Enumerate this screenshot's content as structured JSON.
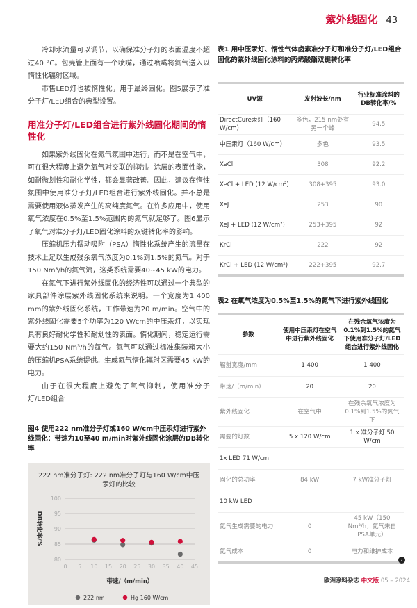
{
  "header": {
    "section": "紫外线固化",
    "page": "43"
  },
  "left": {
    "paragraphs_a": [
      "冷却水流量可以调节，以确保准分子灯的表面温度不超过40 °C。包壳管上面有一个喷嘴，通过喷嘴将氮气送入以惰性化辐射区域。",
      "市售LED灯也被惰性化，用于最终固化。图5展示了准分子灯/LED组合的典型设置。"
    ],
    "heading": "用准分子灯/LED组合进行紫外线固化期间的惰性化",
    "paragraphs_b": [
      "如果紫外线固化在氮气氛围中进行，而不是在空气中，可在很大程度上避免氧气对交联的抑制。涂层的表面性能，如耐微划性和耐化学性，都会显著改善。因此，建议在惰性氛围中使用准分子灯/LED组合进行紫外线固化。并不总是需要使用液体蒸发产生的高纯度氮气。在许多应用中，使用氧气浓度在0.5%至1.5%范围内的氮气就足够了。图6显示了氧气对准分子灯/LED固化涂料的双键转化率的影响。",
      "压缩机压力摆动吸附（PSA）惰性化系统产生的流量在技术上足以生成残余氧气浓度为0.1%到1.5%的氮气。对于150 Nm³/h的氮气流，这类系统需要40~45 kW的电力。",
      "在氮气下进行紫外线固化的经济性可以通过一个典型的家具部件涂层紫外线固化系统来说明。一个宽度为1 400 mm的紫外线固化系统，工作带速为20 m/min。空气中的紫外线固化需要5个功率为120 W/cm的中压汞灯，以实现具有良好耐化学性和耐划性的表面。惰化期间，稳定运行需要大约150 Nm³/h的氮气。氮气可以通过标准集装箱大小的压缩机PSA系统提供。生成氮气惰化辐射区需要45 kW的电力。",
      "由于在很大程度上避免了氧气抑制，使用准分子灯/LED组合"
    ],
    "figure_caption": "图4 使用222 nm准分子灯或160 W/cm中压汞灯进行紫外线固化：带速为10至40 m/min时紫外线固化涂层的DB转化率"
  },
  "chart_data": {
    "type": "scatter",
    "title": "222 nm准分子灯: 222 nm准分子灯与160 W/cm中压汞灯的比较",
    "xlabel": "带速/（m/min）",
    "ylabel": "DB转化率/%",
    "xlim": [
      0,
      45
    ],
    "ylim": [
      80,
      100
    ],
    "xticks": [
      0,
      5,
      10,
      15,
      20,
      25,
      30,
      35,
      40,
      45
    ],
    "yticks": [
      80,
      85,
      90,
      95,
      100
    ],
    "grid": "horizontal",
    "legend": "bottom",
    "series": [
      {
        "name": "222 nm",
        "color": "#6b6b6b",
        "x": [
          10,
          20,
          30,
          40
        ],
        "y": [
          86.3,
          84.8,
          85.3,
          81.7
        ]
      },
      {
        "name": "Hg 160 W/cm",
        "color": "#d0103a",
        "x": [
          10,
          20,
          30,
          40
        ],
        "y": [
          86.5,
          86.2,
          85.6,
          85.9
        ]
      }
    ]
  },
  "table1": {
    "caption": "表1 用中压汞灯、惰性气体卤素准分子灯和准分子灯/LED组合固化的紫外线固化涂料的丙烯酸酯双键转化率",
    "headers": [
      "UV源",
      "发射波长/nm",
      "行业标准涂料的DB转化率/%"
    ],
    "rows": [
      [
        "DirectCure汞灯（160 W/cm）",
        "多色，215 nm处有另一个峰",
        "94.5"
      ],
      [
        "中压汞灯（160 W/cm）",
        "多色",
        "93.5"
      ],
      [
        "XeCl",
        "308",
        "92.2"
      ],
      [
        "XeCl + LED (12 W/cm²)",
        "308+395",
        "93.0"
      ],
      [
        "XeJ",
        "253",
        "90"
      ],
      [
        "XeJ + LED (12 W/cm²)",
        "253+395",
        "92"
      ],
      [
        "KrCl",
        "222",
        "92"
      ],
      [
        "KrCl + LED (12 W/cm²)",
        "222+395",
        "92.7"
      ]
    ]
  },
  "table2": {
    "caption": "表2 在氧气浓度为0.5%至1.5%的氮气下进行紫外线固化",
    "headers": [
      "参数",
      "使用中压汞灯在空气中进行紫外线固化",
      "在残余氧气浓度为0.1%到1.5%的氮气下使用准分子灯/LED组合进行紫外线固化"
    ],
    "rows": [
      [
        "辐射宽度/mm",
        "1 400",
        "1 400"
      ],
      [
        "带速/（m/min）",
        "20",
        "20"
      ],
      [
        "紫外线固化",
        "在空气中",
        "在残余氧气浓度为0.1%到1.5%的氮气下"
      ],
      [
        "需要的灯数",
        "5 x 120 W/cm",
        "1 x 准分子灯 50 W/cm"
      ],
      [
        "1x LED   71 W/cm",
        "",
        ""
      ],
      [
        "固化的总功率",
        "84 kW",
        "7 kW准分子灯"
      ],
      [
        "10 kW LED",
        "",
        ""
      ],
      [
        "氮气生成需要的电力",
        "0",
        "45 kW（150 Nm³/h，氮气来自PSA单元）"
      ],
      [
        "氮气成本",
        "0",
        "电力和维护成本"
      ]
    ]
  },
  "footer": {
    "magazine": "欧洲涂料杂志",
    "edition": "中文版",
    "date": "05 – 2024",
    "next_icon": "chevron-right-icon"
  },
  "colors": {
    "accent": "#d0103a"
  }
}
